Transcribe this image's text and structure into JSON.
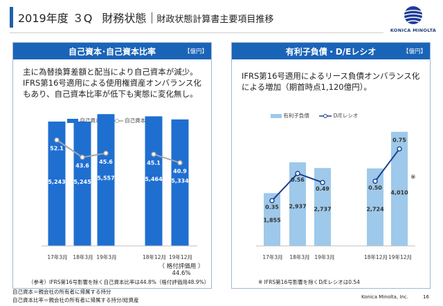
{
  "header": {
    "fiscal": "2019年度",
    "quarter": "３Q",
    "section": "財務状態",
    "subtitle": "財政状態計算書主要項目推移"
  },
  "logo": {
    "text": "KONICA MINOLTA",
    "icon": "konica-minolta-globe-logo"
  },
  "left_panel": {
    "title": "自己資本･自己資本比率",
    "unit": "【億円】",
    "text_lines": [
      "主に為替換算差額と配当により自己資本が減少。",
      "IFRS第16号適用による使用権資産オンバランス化",
      "もあり、自己資本比率が低下も実態に変化無し。"
    ],
    "legend_bar": "自己資本",
    "legend_line": "自己資本比率",
    "eval_label": "（ 格付評価用 ）",
    "eval_value": "44.6%",
    "note": "（参考）IFRS第16号影響を除く自己資本比率は44.8%（格付評価用48.9%）"
  },
  "right_panel": {
    "title": "有利子負債・D/Eレシオ",
    "unit": "【億円】",
    "text_lines": [
      "IFRS第16号適用によるリース負債オンバランス化",
      "による増加（期首時点1,120億円）。"
    ],
    "legend_bar": "有利子負債",
    "legend_line": "D/Eレシオ",
    "asterisk": "※",
    "note": "※ IFRS第16号影響を除くD/Eレシオは0.54"
  },
  "footer": {
    "line1": "自己資本＝親会社の所有者に帰属する持分",
    "line2": "自己資本比率＝親会社の所有者に帰属する持分/総資産",
    "company": "Konica Minolta, Inc.",
    "page": "16"
  },
  "colors": {
    "header_blue": "#1a64b8",
    "left_bar": "#1f6fd1",
    "left_line": "#a6a6a6",
    "right_bar": "#9ec9ea",
    "right_line": "#1c3f8e"
  },
  "chart_data": [
    {
      "type": "bar",
      "categories": [
        "17年3月",
        "18年3月",
        "19年3月",
        "18年12月",
        "19年12月"
      ],
      "series": [
        {
          "name": "自己資本",
          "values": [
            5243,
            5245,
            5557,
            5464,
            5334
          ],
          "labels": [
            "5,243",
            "5,245",
            "5,557",
            "5,464",
            "5,334"
          ]
        },
        {
          "name": "自己資本比率",
          "type": "line",
          "values": [
            52.1,
            43.6,
            45.6,
            45.1,
            40.9
          ],
          "labels": [
            "52.1",
            "43.6",
            "45.6",
            "45.1",
            "40.9"
          ]
        }
      ],
      "ylim": [
        0,
        6000
      ],
      "y2lim": [
        0,
        70
      ],
      "grid": false,
      "legend": "top-left"
    },
    {
      "type": "bar",
      "categories": [
        "17年3月",
        "18年3月",
        "19年3月",
        "18年12月",
        "19年12月"
      ],
      "series": [
        {
          "name": "有利子負債",
          "values": [
            1855,
            2937,
            2737,
            2724,
            4010
          ],
          "labels": [
            "1,855",
            "2,937",
            "2,737",
            "2,724",
            "4,010"
          ]
        },
        {
          "name": "D/Eレシオ",
          "type": "line",
          "values": [
            0.35,
            0.56,
            0.49,
            0.5,
            0.75
          ],
          "labels": [
            "0.35",
            "0.56",
            "0.49",
            "0.50",
            "0.75"
          ]
        }
      ],
      "ylim": [
        0,
        5000
      ],
      "y2lim": [
        0,
        1.1
      ],
      "grid": false,
      "legend": "top-left"
    }
  ]
}
